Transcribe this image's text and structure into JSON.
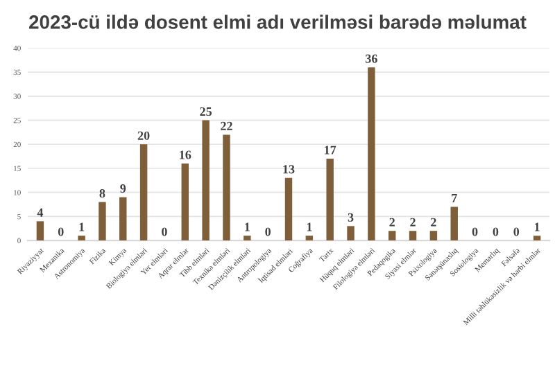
{
  "chart_data": {
    "type": "bar",
    "title": "2023-cü ildə dosent elmi adı verilməsi barədə məlumat",
    "categories": [
      "Riyaziyyat",
      "Mexanika",
      "Astronomiya",
      "Fizika",
      "Kimya",
      "Biologiya elmləri",
      "Yer elmləri",
      "Aqrar elmlər",
      "Tibb elmləri",
      "Texnika elmləri",
      "Dənizçilik elmləri",
      "Antropologiya",
      "İqtisad elmləri",
      "Coğrafiya",
      "Tarix",
      "Hüquq elmləri",
      "Filologiya elmləri",
      "Pedaqogika",
      "Siyasi elmlər",
      "Psixologiya",
      "Sənətşünaslıq",
      "Sosiologiya",
      "Memarlıq",
      "Fəlsəfə",
      "Milli təhlükəsizlik və hərbi elmlər"
    ],
    "values": [
      4,
      0,
      1,
      8,
      9,
      20,
      0,
      16,
      25,
      22,
      1,
      0,
      13,
      1,
      17,
      3,
      36,
      2,
      2,
      2,
      7,
      0,
      0,
      0,
      1
    ],
    "color": "#7f5f3a",
    "ylim": [
      0,
      40
    ],
    "yticks": [
      0,
      5,
      10,
      15,
      20,
      25,
      30,
      35,
      40
    ],
    "grid": "y",
    "data_labels": true
  }
}
